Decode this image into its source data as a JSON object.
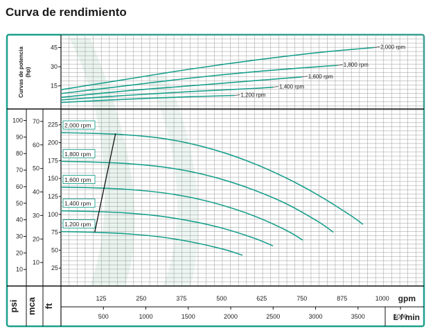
{
  "title": "Curva de rendimiento",
  "colors": {
    "frame": "#1aa08c",
    "curve": "#1aa08c",
    "grid": "#9a9a9a",
    "text": "#222222",
    "shade": "#d7ebe2"
  },
  "chart_data": [
    {
      "type": "line",
      "panel": "power",
      "ylabel": "Curvas de potencia (hp)",
      "xlabel": "gpm",
      "ylim": [
        -2,
        55
      ],
      "xlim": [
        0,
        1130
      ],
      "yticks": [
        15,
        30,
        45
      ],
      "grid": true,
      "series": [
        {
          "name": "2,000 rpm",
          "x": [
            0,
            200,
            400,
            600,
            800,
            975
          ],
          "y": [
            12,
            20,
            28,
            35,
            41,
            45
          ]
        },
        {
          "name": "1,800 rpm",
          "x": [
            0,
            200,
            400,
            600,
            800,
            860
          ],
          "y": [
            9,
            15,
            21,
            26,
            30,
            31
          ]
        },
        {
          "name": "1,600 rpm",
          "x": [
            0,
            200,
            400,
            600,
            750
          ],
          "y": [
            6,
            11,
            15,
            19,
            22
          ]
        },
        {
          "name": "1,400 rpm",
          "x": [
            0,
            200,
            400,
            600,
            660
          ],
          "y": [
            4,
            7.5,
            10.5,
            13,
            14
          ]
        },
        {
          "name": "1,200 rpm",
          "x": [
            0,
            200,
            400,
            540
          ],
          "y": [
            2,
            4.5,
            6.5,
            7.5
          ]
        }
      ]
    },
    {
      "type": "line",
      "panel": "head",
      "ylabel": "ft",
      "xlabel": "gpm",
      "xlabel2": "L / min",
      "ylim": [
        0,
        247
      ],
      "xlim": [
        0,
        1130
      ],
      "yticks_ft": [
        25,
        50,
        75,
        100,
        125,
        150,
        175,
        200,
        225
      ],
      "yticks_psi": [
        10,
        20,
        30,
        40,
        50,
        60,
        70,
        80,
        90,
        100
      ],
      "yticks_mca": [
        10,
        20,
        30,
        40,
        50,
        60,
        70
      ],
      "xticks_gpm": [
        125,
        250,
        375,
        500,
        625,
        750,
        875,
        1000
      ],
      "xticks_lmin": [
        500,
        1000,
        1500,
        2000,
        2500,
        3000,
        3500,
        4000
      ],
      "grid": true,
      "series": [
        {
          "name": "2,000 rpm",
          "x": [
            0,
            100,
            200,
            300,
            400,
            500,
            600,
            700,
            800,
            900,
            940
          ],
          "y": [
            214,
            213,
            211,
            207,
            199,
            187,
            171,
            151,
            127,
            99,
            86
          ]
        },
        {
          "name": "1,800 rpm",
          "x": [
            0,
            100,
            200,
            300,
            400,
            500,
            600,
            700,
            800,
            848
          ],
          "y": [
            174,
            173,
            171,
            167,
            160,
            149,
            134,
            115,
            90,
            75
          ]
        },
        {
          "name": "1,600 rpm",
          "x": [
            0,
            100,
            200,
            300,
            400,
            500,
            600,
            700,
            753
          ],
          "y": [
            138,
            137,
            135,
            131,
            124,
            113,
            98,
            78,
            64
          ]
        },
        {
          "name": "1,400 rpm",
          "x": [
            0,
            100,
            200,
            300,
            400,
            500,
            600,
            660
          ],
          "y": [
            105,
            104,
            102,
            98,
            91,
            81,
            67,
            56
          ]
        },
        {
          "name": "1,200 rpm",
          "x": [
            0,
            100,
            200,
            300,
            400,
            500,
            565
          ],
          "y": [
            76,
            75,
            73,
            69,
            62,
            52,
            43
          ]
        }
      ],
      "efficiency_line": {
        "x": [
          105,
          170
        ],
        "y": [
          75,
          213
        ]
      }
    }
  ],
  "axis_titles": {
    "psi": "psi",
    "mca": "mca",
    "ft": "ft",
    "gpm": "gpm",
    "lmin": "L / min"
  }
}
